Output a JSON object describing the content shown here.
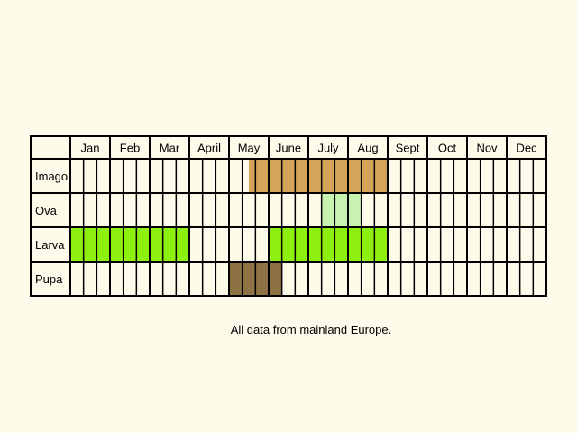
{
  "chart_data": {
    "type": "table",
    "months": [
      "Jan",
      "Feb",
      "Mar",
      "April",
      "May",
      "June",
      "July",
      "Aug",
      "Sept",
      "Oct",
      "Nov",
      "Dec"
    ],
    "subdivisions_per_month": 3,
    "rows": [
      {
        "label": "Imago",
        "color": "#d6a35a",
        "active_periods": [
          [
            13.5,
            16.5
          ],
          [
            16.5,
            24
          ]
        ]
      },
      {
        "label": "Ova",
        "color": "#c7f2b0",
        "active_periods": [
          [
            19,
            22
          ]
        ]
      },
      {
        "label": "Larva",
        "color": "#8ef00e",
        "active_periods": [
          [
            0,
            9
          ],
          [
            15,
            24
          ]
        ]
      },
      {
        "label": "Pupa",
        "color": "#8e7243",
        "active_periods": [
          [
            12,
            14
          ],
          [
            14,
            16
          ]
        ]
      }
    ],
    "footnote": "All data from mainland Europe."
  },
  "colors": {
    "background": "#fffbea",
    "cell": "#fffbea",
    "grid": "#000000"
  }
}
